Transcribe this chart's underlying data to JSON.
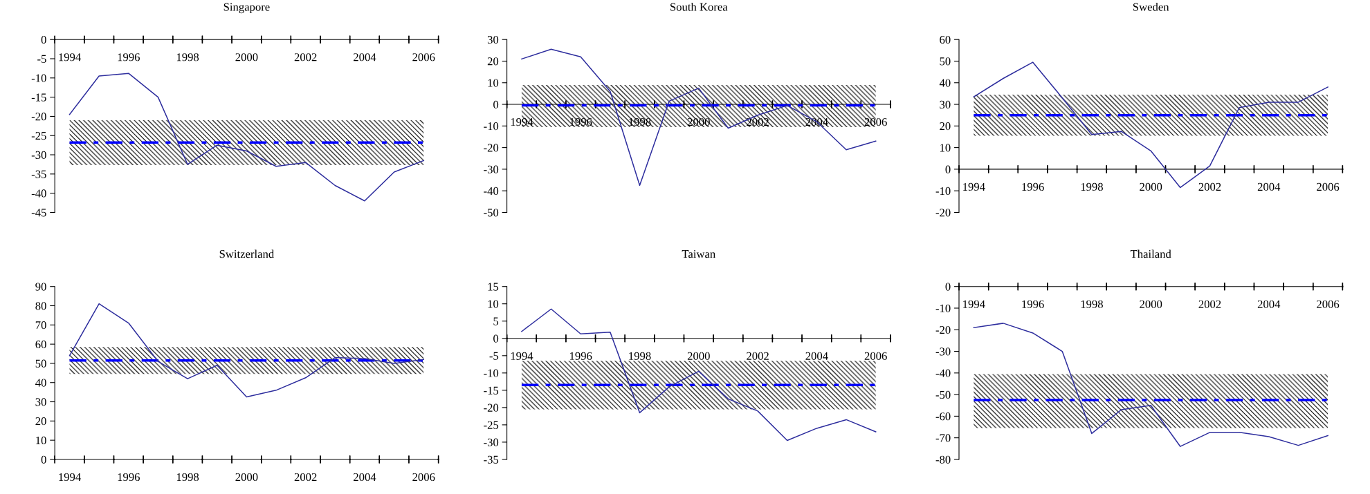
{
  "chart_data": [
    {
      "type": "line",
      "title": "Singapore",
      "categories": [
        "1994",
        null,
        "1996",
        null,
        "1998",
        null,
        "2000",
        null,
        "2002",
        null,
        "2004",
        null,
        "2006"
      ],
      "series": [
        {
          "color": "#2e2e9e",
          "values": [
            -19.5,
            -9.5,
            -8.8,
            -15,
            -32.5,
            -27.5,
            -29,
            -33,
            -32,
            -38,
            -42,
            -34.5,
            -31.5
          ]
        }
      ],
      "ylim": [
        -45,
        0
      ],
      "yticks": [
        -45,
        -40,
        -35,
        -30,
        -25,
        -20,
        -15,
        -10,
        -5,
        0
      ],
      "ref_lines": [
        {
          "axis": "y",
          "value": -26.8,
          "color": "#0000ff",
          "line_style": "dashed"
        }
      ],
      "bands": [
        {
          "axis": "y",
          "from": -32.7,
          "to": -21,
          "color": "#000000"
        }
      ],
      "grid": false
    },
    {
      "type": "line",
      "title": "South Korea",
      "categories": [
        "1994",
        null,
        "1996",
        null,
        "1998",
        null,
        "2000",
        null,
        "2002",
        null,
        "2004",
        null,
        "2006"
      ],
      "series": [
        {
          "color": "#2e2e9e",
          "values": [
            21,
            25.5,
            22,
            6,
            -37.5,
            1.5,
            7.5,
            -11,
            -5,
            -0.5,
            -8,
            -21,
            -17
          ]
        }
      ],
      "ylim": [
        -50,
        30
      ],
      "yticks": [
        -50,
        -40,
        -30,
        -20,
        -10,
        0,
        10,
        20,
        30
      ],
      "ref_lines": [
        {
          "axis": "y",
          "value": -0.5,
          "color": "#0000ff",
          "line_style": "dashed"
        }
      ],
      "bands": [
        {
          "axis": "y",
          "from": -10.5,
          "to": 9,
          "color": "#000000"
        }
      ],
      "grid": false
    },
    {
      "type": "line",
      "title": "Sweden",
      "categories": [
        "1994",
        null,
        "1996",
        null,
        "1998",
        null,
        "2000",
        null,
        "2002",
        null,
        "2004",
        null,
        "2006"
      ],
      "series": [
        {
          "color": "#2e2e9e",
          "values": [
            33.5,
            42,
            49.5,
            33,
            16,
            17.5,
            8.5,
            -8.5,
            1.5,
            28.5,
            31,
            31,
            38
          ]
        }
      ],
      "ylim": [
        -20,
        60
      ],
      "yticks": [
        -20,
        -10,
        0,
        10,
        20,
        30,
        40,
        50,
        60
      ],
      "ref_lines": [
        {
          "axis": "y",
          "value": 25,
          "color": "#0000ff",
          "line_style": "dashed"
        }
      ],
      "bands": [
        {
          "axis": "y",
          "from": 15.5,
          "to": 34.5,
          "color": "#000000"
        }
      ],
      "grid": false
    },
    {
      "type": "line",
      "title": "Switzerland",
      "categories": [
        "1994",
        null,
        "1996",
        null,
        "1998",
        null,
        "2000",
        null,
        "2002",
        null,
        "2004",
        null,
        "2006"
      ],
      "series": [
        {
          "color": "#2e2e9e",
          "values": [
            54,
            81,
            71,
            51,
            42,
            49,
            32.5,
            36,
            42.5,
            53,
            52.5,
            50,
            52
          ]
        }
      ],
      "ylim": [
        0,
        90
      ],
      "yticks": [
        0,
        10,
        20,
        30,
        40,
        50,
        60,
        70,
        80,
        90
      ],
      "ref_lines": [
        {
          "axis": "y",
          "value": 51.5,
          "color": "#0000ff",
          "line_style": "dashed"
        }
      ],
      "bands": [
        {
          "axis": "y",
          "from": 44.5,
          "to": 58.5,
          "color": "#000000"
        }
      ],
      "grid": false
    },
    {
      "type": "line",
      "title": "Taiwan",
      "categories": [
        "1994",
        null,
        "1996",
        null,
        "1998",
        null,
        "2000",
        null,
        "2002",
        null,
        "2004",
        null,
        "2006"
      ],
      "series": [
        {
          "color": "#2e2e9e",
          "values": [
            2,
            8.5,
            1.3,
            1.8,
            -21.5,
            -14,
            -9.5,
            -17.5,
            -21,
            -29.5,
            -26,
            -23.5,
            -27
          ]
        }
      ],
      "ylim": [
        -35,
        15
      ],
      "yticks": [
        -35,
        -30,
        -25,
        -20,
        -15,
        -10,
        -5,
        0,
        5,
        10,
        15
      ],
      "ref_lines": [
        {
          "axis": "y",
          "value": -13.5,
          "color": "#0000ff",
          "line_style": "dashed"
        }
      ],
      "bands": [
        {
          "axis": "y",
          "from": -20.5,
          "to": -6.5,
          "color": "#000000"
        }
      ],
      "grid": false
    },
    {
      "type": "line",
      "title": "Thailand",
      "categories": [
        "1994",
        null,
        "1996",
        null,
        "1998",
        null,
        "2000",
        null,
        "2002",
        null,
        "2004",
        null,
        "2006"
      ],
      "series": [
        {
          "color": "#2e2e9e",
          "values": [
            -19,
            -17,
            -21.5,
            -30,
            -68,
            -57,
            -55,
            -74,
            -67.5,
            -67.5,
            -69.5,
            -73.5,
            -69
          ]
        }
      ],
      "ylim": [
        -80,
        0
      ],
      "yticks": [
        -80,
        -70,
        -60,
        -50,
        -40,
        -30,
        -20,
        -10,
        0
      ],
      "ref_lines": [
        {
          "axis": "y",
          "value": -52.5,
          "color": "#0000ff",
          "line_style": "dashed"
        }
      ],
      "bands": [
        {
          "axis": "y",
          "from": -65.5,
          "to": -40.5,
          "color": "#000000"
        }
      ],
      "grid": false
    }
  ]
}
